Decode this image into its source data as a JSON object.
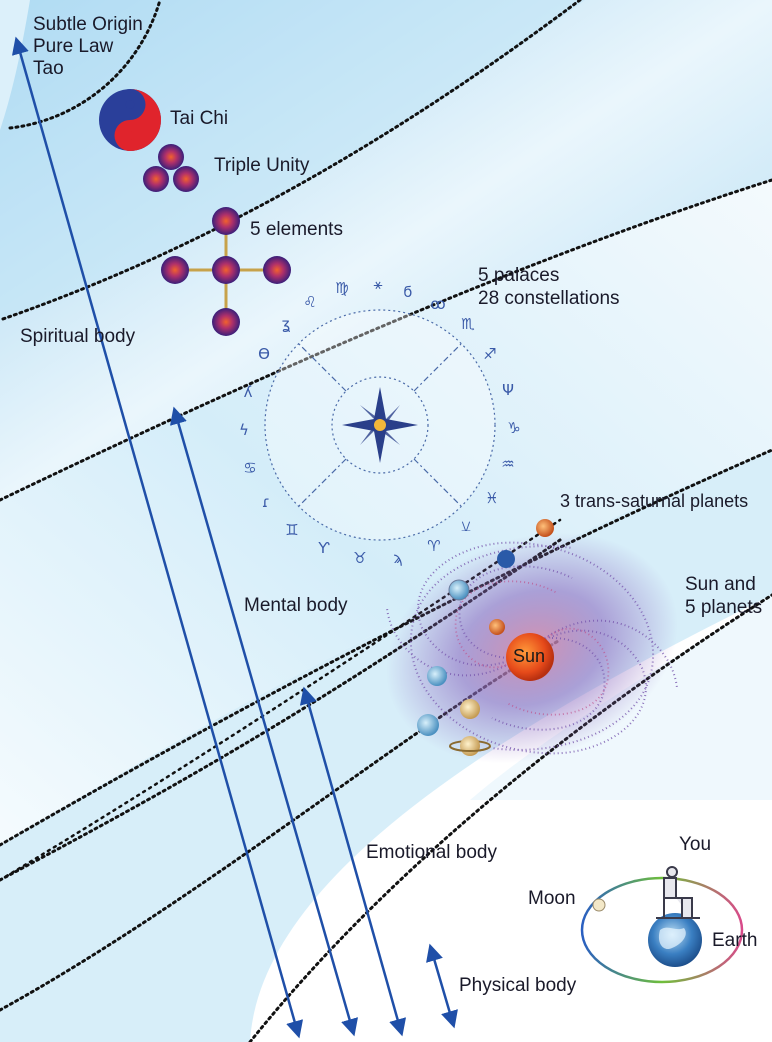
{
  "labels": {
    "subtle_origin": "Subtle Origin",
    "pure_law": "Pure Law",
    "tao": "Tao",
    "tai_chi": "Tai Chi",
    "triple_unity": "Triple Unity",
    "five_elements": "5 elements",
    "five_palaces": "5 palaces",
    "twenty_eight_constellations": "28 constellations",
    "spiritual_body": "Spiritual body",
    "mental_body": "Mental body",
    "trans_saturnal": "3 trans-saturnal planets",
    "sun_and": "Sun and",
    "five_planets": "5 planets",
    "sun": "Sun",
    "emotional_body": "Emotional body",
    "you": "You",
    "moon": "Moon",
    "earth": "Earth",
    "physical_body": "Physical body"
  },
  "colors": {
    "band_blue": "#bfe3f6",
    "band_light": "#eef8fd",
    "arrow": "#1f4fa8",
    "yin_red": "#e0242c",
    "yin_blue": "#2a3f9a",
    "element_purple": "#5a2a8a",
    "element_orange": "#e8542a",
    "sun_orange": "#e8531f",
    "galaxy_purple": "#7b5cb0"
  },
  "icons": {
    "tai_chi": "yin-yang-icon",
    "compass": "compass-star-icon",
    "earth": "earth-globe-icon",
    "person": "seated-person-icon"
  }
}
